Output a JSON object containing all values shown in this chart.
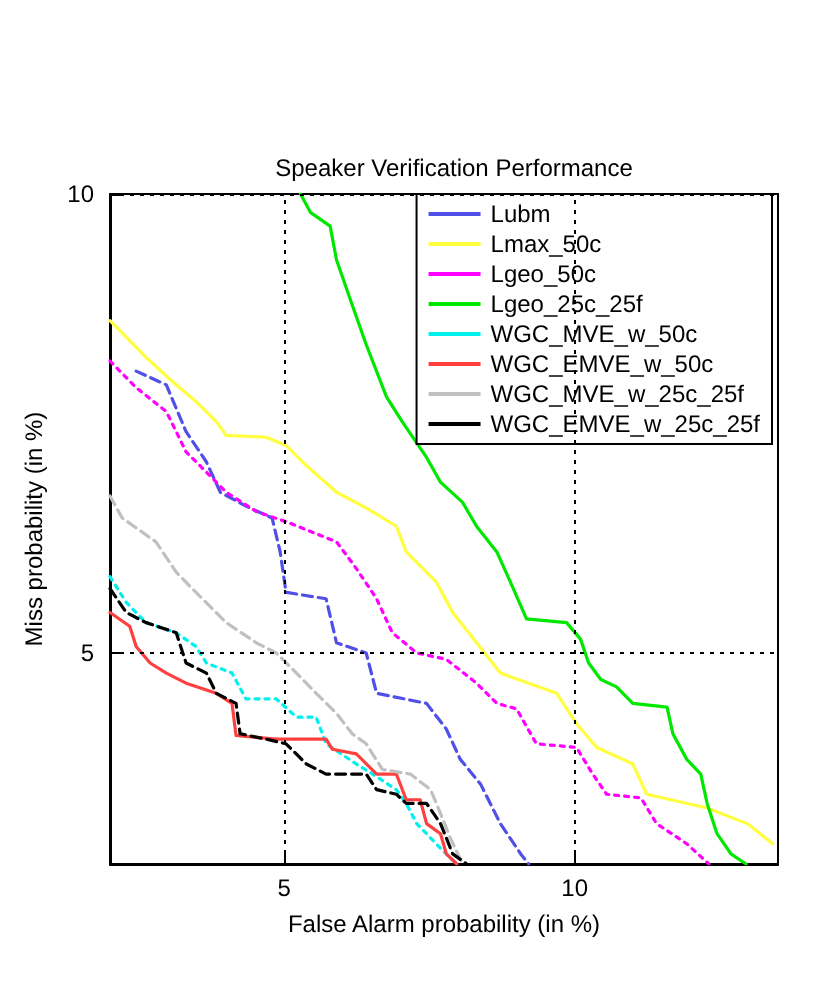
{
  "chart_data": {
    "type": "line",
    "title": "Speaker Verification Performance",
    "xlabel": "False Alarm probability (in %)",
    "ylabel": "Miss probability (in %)",
    "xlim": [
      2,
      13.5
    ],
    "ylim": [
      2.7,
      10
    ],
    "xticks": [
      5,
      10
    ],
    "yticks": [
      5,
      10
    ],
    "grid": true,
    "legend": "top right",
    "marker": "none",
    "series": [
      {
        "name": "Lubm",
        "color": "#5050e8",
        "line_style": "dashed",
        "x": [
          2.45,
          2.97,
          3.31,
          3.66,
          3.9,
          4.34,
          4.79,
          4.93,
          5.03,
          5.72,
          5.9,
          6.41,
          6.59,
          7.45,
          7.79,
          8.03,
          8.38,
          8.72,
          9.07,
          9.21
        ],
        "values": [
          8.07,
          7.92,
          7.41,
          7.08,
          6.75,
          6.6,
          6.47,
          6.1,
          5.66,
          5.59,
          5.11,
          5.0,
          4.56,
          4.45,
          4.17,
          3.84,
          3.57,
          3.14,
          2.81,
          2.7
        ]
      },
      {
        "name": "Lmax_50c",
        "color": "#ffff40",
        "line_style": "solid",
        "x": [
          2.0,
          2.28,
          2.62,
          3.07,
          3.48,
          3.83,
          4.0,
          4.69,
          5.03,
          5.38,
          5.9,
          6.41,
          6.93,
          7.1,
          7.62,
          7.9,
          8.31,
          8.72,
          9.69,
          10.03,
          10.38,
          11.0,
          11.24,
          12.28,
          12.97,
          13.41
        ],
        "values": [
          8.62,
          8.44,
          8.22,
          7.96,
          7.74,
          7.52,
          7.37,
          7.35,
          7.26,
          7.04,
          6.75,
          6.58,
          6.38,
          6.1,
          5.77,
          5.44,
          5.11,
          4.78,
          4.56,
          4.23,
          3.97,
          3.79,
          3.46,
          3.31,
          3.14,
          2.92
        ]
      },
      {
        "name": "Lgeo_50c",
        "color": "#ff00ff",
        "line_style": "dotted",
        "x": [
          2.0,
          2.45,
          2.97,
          3.31,
          3.66,
          4.0,
          4.52,
          5.03,
          5.9,
          6.24,
          6.59,
          6.86,
          7.28,
          7.79,
          8.31,
          8.66,
          9.0,
          9.34,
          10.03,
          10.31,
          10.55,
          11.14,
          11.41,
          11.93,
          12.31
        ],
        "values": [
          8.18,
          7.89,
          7.63,
          7.19,
          6.97,
          6.75,
          6.54,
          6.43,
          6.21,
          5.92,
          5.59,
          5.22,
          5.0,
          4.93,
          4.67,
          4.45,
          4.39,
          4.01,
          3.97,
          3.68,
          3.46,
          3.42,
          3.14,
          2.92,
          2.7
        ]
      },
      {
        "name": "Lgeo_25c_25f",
        "color": "#00e800",
        "line_style": "solid",
        "x": [
          5.28,
          5.45,
          5.79,
          5.9,
          6.17,
          6.41,
          6.76,
          7.03,
          7.45,
          7.69,
          8.07,
          8.31,
          8.66,
          8.93,
          9.17,
          9.86,
          10.1,
          10.24,
          10.45,
          10.72,
          11.0,
          11.59,
          11.69,
          11.93,
          12.17,
          12.28,
          12.45,
          12.69,
          12.95
        ],
        "values": [
          10.0,
          9.8,
          9.65,
          9.28,
          8.79,
          8.36,
          7.79,
          7.52,
          7.13,
          6.86,
          6.64,
          6.38,
          6.1,
          5.72,
          5.37,
          5.33,
          5.15,
          4.89,
          4.71,
          4.63,
          4.45,
          4.41,
          4.12,
          3.84,
          3.68,
          3.36,
          3.03,
          2.81,
          2.7
        ]
      },
      {
        "name": "WGC_MVE_w_50c",
        "color": "#00f0f0",
        "line_style": "dotted",
        "x": [
          2.0,
          2.28,
          2.62,
          3.14,
          3.48,
          3.66,
          4.1,
          4.34,
          4.86,
          5.21,
          5.55,
          5.72,
          6.24,
          6.52,
          6.93,
          7.1,
          7.28,
          7.45,
          7.69,
          7.97
        ],
        "values": [
          5.83,
          5.55,
          5.33,
          5.22,
          5.07,
          4.89,
          4.78,
          4.5,
          4.5,
          4.3,
          4.3,
          4.01,
          3.79,
          3.68,
          3.51,
          3.36,
          3.14,
          3.03,
          2.87,
          2.7
        ]
      },
      {
        "name": "WGC_EMVE_w_50c",
        "color": "#ff4040",
        "line_style": "solid",
        "x": [
          2.0,
          2.34,
          2.45,
          2.69,
          2.97,
          3.31,
          3.83,
          4.1,
          4.17,
          4.86,
          5.72,
          5.83,
          6.24,
          6.59,
          6.93,
          7.1,
          7.34,
          7.45,
          7.69,
          7.79,
          7.97
        ],
        "values": [
          5.44,
          5.29,
          5.07,
          4.89,
          4.78,
          4.67,
          4.56,
          4.45,
          4.1,
          4.06,
          4.06,
          3.95,
          3.9,
          3.68,
          3.68,
          3.4,
          3.4,
          3.14,
          3.03,
          2.81,
          2.7
        ]
      },
      {
        "name": "WGC_MVE_w_25c_25f",
        "color": "#c0c0c0",
        "line_style": "dashed",
        "x": [
          2.0,
          2.21,
          2.79,
          3.14,
          3.48,
          4.0,
          4.52,
          4.86,
          5.21,
          5.55,
          5.9,
          6.17,
          6.41,
          6.69,
          7.17,
          7.52,
          7.69,
          7.86,
          8.07
        ],
        "values": [
          6.71,
          6.47,
          6.21,
          5.88,
          5.66,
          5.33,
          5.11,
          5.0,
          4.78,
          4.56,
          4.34,
          4.12,
          4.01,
          3.73,
          3.68,
          3.51,
          3.25,
          2.98,
          2.7
        ]
      },
      {
        "name": "WGC_EMVE_w_25c_25f",
        "color": "#000000",
        "line_style": "dashed",
        "x": [
          2.0,
          2.28,
          2.62,
          3.14,
          3.31,
          3.66,
          3.83,
          4.17,
          4.24,
          4.69,
          5.03,
          5.38,
          5.72,
          6.41,
          6.59,
          6.93,
          7.1,
          7.45,
          7.69,
          7.9,
          8.14
        ],
        "values": [
          5.7,
          5.44,
          5.33,
          5.22,
          4.89,
          4.78,
          4.56,
          4.45,
          4.12,
          4.06,
          4.01,
          3.79,
          3.68,
          3.68,
          3.51,
          3.46,
          3.36,
          3.36,
          3.14,
          2.81,
          2.7
        ]
      }
    ]
  }
}
